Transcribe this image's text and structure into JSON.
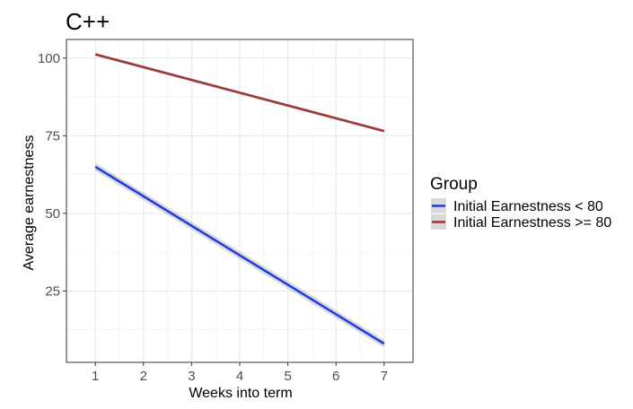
{
  "chart_data": {
    "type": "line",
    "title": "C++",
    "xlabel": "Weeks into term",
    "ylabel": "Average earnestness",
    "xlim": [
      0.4,
      7.6
    ],
    "ylim": [
      2,
      106
    ],
    "x_ticks": [
      1,
      2,
      3,
      4,
      5,
      6,
      7
    ],
    "y_ticks": [
      25,
      50,
      75,
      100
    ],
    "grid": true,
    "legend": {
      "title": "Group",
      "placement": "right"
    },
    "series": [
      {
        "name": "Initial Earnestness < 80",
        "color": "#1f3fe0",
        "x": [
          1,
          7
        ],
        "y": [
          65,
          8
        ],
        "ci_halfwidth": [
          1.3,
          1.3
        ]
      },
      {
        "name": "Initial Earnestness >= 80",
        "color": "#9b3a32",
        "x": [
          1,
          7
        ],
        "y": [
          101.2,
          76.5
        ],
        "ci_halfwidth": [
          0.5,
          0.5
        ]
      }
    ]
  }
}
